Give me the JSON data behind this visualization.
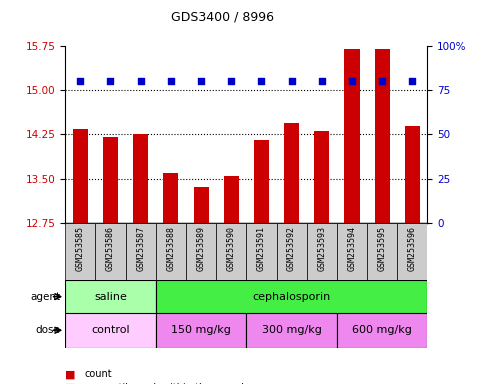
{
  "title": "GDS3400 / 8996",
  "samples": [
    "GSM253585",
    "GSM253586",
    "GSM253587",
    "GSM253588",
    "GSM253589",
    "GSM253590",
    "GSM253591",
    "GSM253592",
    "GSM253593",
    "GSM253594",
    "GSM253595",
    "GSM253596"
  ],
  "bar_values": [
    14.35,
    14.2,
    14.25,
    13.6,
    13.35,
    13.55,
    14.15,
    14.45,
    14.3,
    15.7,
    15.7,
    14.4
  ],
  "dot_values": [
    80,
    80,
    80,
    80,
    80,
    80,
    80,
    80,
    80,
    80,
    80,
    80
  ],
  "ylim": [
    12.75,
    15.75
  ],
  "y_ticks": [
    12.75,
    13.5,
    14.25,
    15.0,
    15.75
  ],
  "y_right_ticks": [
    0,
    25,
    50,
    75,
    100
  ],
  "bar_color": "#cc0000",
  "dot_color": "#0000cc",
  "bar_bottom": 12.75,
  "agent_labels": [
    {
      "text": "saline",
      "start": 0,
      "end": 3,
      "color": "#aaffaa"
    },
    {
      "text": "cephalosporin",
      "start": 3,
      "end": 12,
      "color": "#44ee44"
    }
  ],
  "dose_labels": [
    {
      "text": "control",
      "start": 0,
      "end": 3,
      "color": "#ffccff"
    },
    {
      "text": "150 mg/kg",
      "start": 3,
      "end": 6,
      "color": "#ee88ee"
    },
    {
      "text": "300 mg/kg",
      "start": 6,
      "end": 9,
      "color": "#ee88ee"
    },
    {
      "text": "600 mg/kg",
      "start": 9,
      "end": 12,
      "color": "#ee88ee"
    }
  ],
  "grid_values": [
    13.5,
    14.25,
    15.0
  ],
  "background_color": "#ffffff",
  "tick_label_color_left": "#cc0000",
  "tick_label_color_right": "#0000cc",
  "xlabel_bg": "#cccccc"
}
